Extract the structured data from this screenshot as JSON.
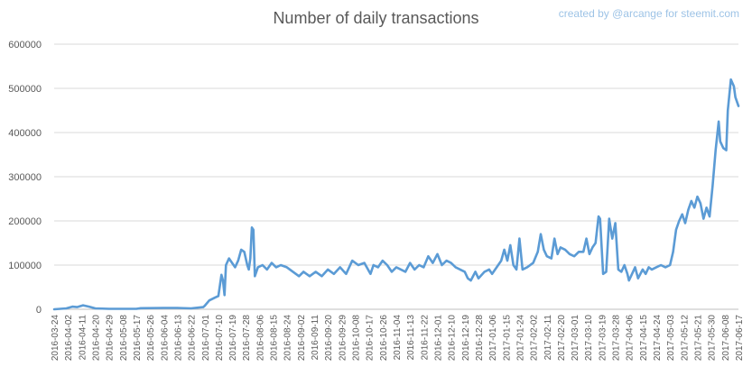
{
  "chart_data": {
    "type": "line",
    "title": "Number of daily transactions",
    "credit": "created by @arcange for steemit.com",
    "xlabel": "",
    "ylabel": "",
    "ylim": [
      0,
      600000
    ],
    "y_ticks": [
      0,
      100000,
      200000,
      300000,
      400000,
      500000,
      600000
    ],
    "y_tick_labels": [
      "0",
      "100000",
      "200000",
      "300000",
      "400000",
      "500000",
      "600000"
    ],
    "x_start": "2016-03-24",
    "x_end": "2017-06-17",
    "x_tick_labels": [
      "2016-03-24",
      "2016-04-02",
      "2016-04-11",
      "2016-04-20",
      "2016-04-29",
      "2016-05-08",
      "2016-05-17",
      "2016-05-26",
      "2016-06-04",
      "2016-06-13",
      "2016-06-22",
      "2016-07-01",
      "2016-07-10",
      "2016-07-19",
      "2016-07-28",
      "2016-08-06",
      "2016-08-15",
      "2016-08-24",
      "2016-09-02",
      "2016-09-11",
      "2016-09-20",
      "2016-09-29",
      "2016-10-08",
      "2016-10-17",
      "2016-10-26",
      "2016-11-04",
      "2016-11-13",
      "2016-11-22",
      "2016-12-01",
      "2016-12-10",
      "2016-12-19",
      "2016-12-28",
      "2017-01-06",
      "2017-01-15",
      "2017-01-24",
      "2017-02-02",
      "2017-02-11",
      "2017-02-20",
      "2017-03-01",
      "2017-03-10",
      "2017-03-19",
      "2017-03-28",
      "2017-04-06",
      "2017-04-15",
      "2017-04-24",
      "2017-05-03",
      "2017-05-12",
      "2017-05-21",
      "2017-05-30",
      "2017-06-08",
      "2017-06-17"
    ],
    "grid": true,
    "legend": "none",
    "colors": {
      "line": "#5b9bd5",
      "grid": "#d9d9d9",
      "axis_text": "#595959",
      "credit": "#9dc3e6"
    },
    "series": [
      {
        "points": [
          [
            "2016-03-24",
            0
          ],
          [
            "2016-04-01",
            2000
          ],
          [
            "2016-04-05",
            6000
          ],
          [
            "2016-04-08",
            5000
          ],
          [
            "2016-04-12",
            9000
          ],
          [
            "2016-04-16",
            6000
          ],
          [
            "2016-04-20",
            2000
          ],
          [
            "2016-04-29",
            1000
          ],
          [
            "2016-05-17",
            1000
          ],
          [
            "2016-05-20",
            2500
          ],
          [
            "2016-06-04",
            3000
          ],
          [
            "2016-06-13",
            3000
          ],
          [
            "2016-06-22",
            2000
          ],
          [
            "2016-06-30",
            5000
          ],
          [
            "2016-07-01",
            8000
          ],
          [
            "2016-07-04",
            20000
          ],
          [
            "2016-07-08",
            27000
          ],
          [
            "2016-07-10",
            30000
          ],
          [
            "2016-07-12",
            78000
          ],
          [
            "2016-07-13",
            65000
          ],
          [
            "2016-07-14",
            32000
          ],
          [
            "2016-07-15",
            100000
          ],
          [
            "2016-07-17",
            115000
          ],
          [
            "2016-07-19",
            105000
          ],
          [
            "2016-07-21",
            95000
          ],
          [
            "2016-07-23",
            110000
          ],
          [
            "2016-07-25",
            135000
          ],
          [
            "2016-07-27",
            130000
          ],
          [
            "2016-07-29",
            100000
          ],
          [
            "2016-07-30",
            90000
          ],
          [
            "2016-07-31",
            115000
          ],
          [
            "2016-08-01",
            185000
          ],
          [
            "2016-08-02",
            180000
          ],
          [
            "2016-08-03",
            75000
          ],
          [
            "2016-08-05",
            95000
          ],
          [
            "2016-08-08",
            100000
          ],
          [
            "2016-08-11",
            90000
          ],
          [
            "2016-08-14",
            105000
          ],
          [
            "2016-08-17",
            95000
          ],
          [
            "2016-08-20",
            100000
          ],
          [
            "2016-08-24",
            95000
          ],
          [
            "2016-08-28",
            85000
          ],
          [
            "2016-09-01",
            75000
          ],
          [
            "2016-09-04",
            85000
          ],
          [
            "2016-09-08",
            75000
          ],
          [
            "2016-09-12",
            85000
          ],
          [
            "2016-09-16",
            75000
          ],
          [
            "2016-09-20",
            90000
          ],
          [
            "2016-09-24",
            80000
          ],
          [
            "2016-09-28",
            95000
          ],
          [
            "2016-10-02",
            80000
          ],
          [
            "2016-10-06",
            110000
          ],
          [
            "2016-10-10",
            100000
          ],
          [
            "2016-10-14",
            105000
          ],
          [
            "2016-10-18",
            80000
          ],
          [
            "2016-10-20",
            100000
          ],
          [
            "2016-10-23",
            95000
          ],
          [
            "2016-10-26",
            110000
          ],
          [
            "2016-10-29",
            100000
          ],
          [
            "2016-11-01",
            85000
          ],
          [
            "2016-11-04",
            95000
          ],
          [
            "2016-11-07",
            90000
          ],
          [
            "2016-11-10",
            85000
          ],
          [
            "2016-11-13",
            105000
          ],
          [
            "2016-11-16",
            90000
          ],
          [
            "2016-11-19",
            100000
          ],
          [
            "2016-11-22",
            95000
          ],
          [
            "2016-11-25",
            120000
          ],
          [
            "2016-11-28",
            105000
          ],
          [
            "2016-12-01",
            125000
          ],
          [
            "2016-12-04",
            100000
          ],
          [
            "2016-12-07",
            110000
          ],
          [
            "2016-12-10",
            105000
          ],
          [
            "2016-12-13",
            95000
          ],
          [
            "2016-12-16",
            90000
          ],
          [
            "2016-12-19",
            85000
          ],
          [
            "2016-12-21",
            70000
          ],
          [
            "2016-12-23",
            65000
          ],
          [
            "2016-12-26",
            85000
          ],
          [
            "2016-12-28",
            70000
          ],
          [
            "2017-01-01",
            85000
          ],
          [
            "2017-01-04",
            90000
          ],
          [
            "2017-01-06",
            80000
          ],
          [
            "2017-01-09",
            95000
          ],
          [
            "2017-01-12",
            110000
          ],
          [
            "2017-01-14",
            135000
          ],
          [
            "2017-01-16",
            110000
          ],
          [
            "2017-01-18",
            145000
          ],
          [
            "2017-01-20",
            100000
          ],
          [
            "2017-01-22",
            90000
          ],
          [
            "2017-01-24",
            160000
          ],
          [
            "2017-01-26",
            90000
          ],
          [
            "2017-01-29",
            95000
          ],
          [
            "2017-02-02",
            105000
          ],
          [
            "2017-02-05",
            130000
          ],
          [
            "2017-02-07",
            170000
          ],
          [
            "2017-02-09",
            135000
          ],
          [
            "2017-02-11",
            120000
          ],
          [
            "2017-02-14",
            115000
          ],
          [
            "2017-02-16",
            160000
          ],
          [
            "2017-02-18",
            125000
          ],
          [
            "2017-02-20",
            140000
          ],
          [
            "2017-02-23",
            135000
          ],
          [
            "2017-02-26",
            125000
          ],
          [
            "2017-03-01",
            120000
          ],
          [
            "2017-03-04",
            130000
          ],
          [
            "2017-03-07",
            130000
          ],
          [
            "2017-03-09",
            160000
          ],
          [
            "2017-03-11",
            125000
          ],
          [
            "2017-03-13",
            140000
          ],
          [
            "2017-03-15",
            150000
          ],
          [
            "2017-03-17",
            210000
          ],
          [
            "2017-03-18",
            205000
          ],
          [
            "2017-03-20",
            80000
          ],
          [
            "2017-03-22",
            85000
          ],
          [
            "2017-03-24",
            205000
          ],
          [
            "2017-03-26",
            160000
          ],
          [
            "2017-03-28",
            195000
          ],
          [
            "2017-03-30",
            90000
          ],
          [
            "2017-04-01",
            85000
          ],
          [
            "2017-04-03",
            100000
          ],
          [
            "2017-04-05",
            80000
          ],
          [
            "2017-04-06",
            65000
          ],
          [
            "2017-04-08",
            80000
          ],
          [
            "2017-04-10",
            95000
          ],
          [
            "2017-04-12",
            70000
          ],
          [
            "2017-04-15",
            90000
          ],
          [
            "2017-04-17",
            80000
          ],
          [
            "2017-04-19",
            95000
          ],
          [
            "2017-04-21",
            90000
          ],
          [
            "2017-04-24",
            95000
          ],
          [
            "2017-04-27",
            100000
          ],
          [
            "2017-04-30",
            95000
          ],
          [
            "2017-05-03",
            100000
          ],
          [
            "2017-05-05",
            130000
          ],
          [
            "2017-05-07",
            180000
          ],
          [
            "2017-05-09",
            200000
          ],
          [
            "2017-05-11",
            215000
          ],
          [
            "2017-05-13",
            195000
          ],
          [
            "2017-05-15",
            225000
          ],
          [
            "2017-05-17",
            245000
          ],
          [
            "2017-05-19",
            230000
          ],
          [
            "2017-05-21",
            255000
          ],
          [
            "2017-05-23",
            240000
          ],
          [
            "2017-05-25",
            205000
          ],
          [
            "2017-05-27",
            230000
          ],
          [
            "2017-05-29",
            210000
          ],
          [
            "2017-05-31",
            280000
          ],
          [
            "2017-06-02",
            360000
          ],
          [
            "2017-06-04",
            425000
          ],
          [
            "2017-06-05",
            380000
          ],
          [
            "2017-06-07",
            365000
          ],
          [
            "2017-06-09",
            360000
          ],
          [
            "2017-06-10",
            450000
          ],
          [
            "2017-06-12",
            520000
          ],
          [
            "2017-06-14",
            505000
          ],
          [
            "2017-06-15",
            480000
          ],
          [
            "2017-06-17",
            460000
          ]
        ]
      }
    ]
  }
}
